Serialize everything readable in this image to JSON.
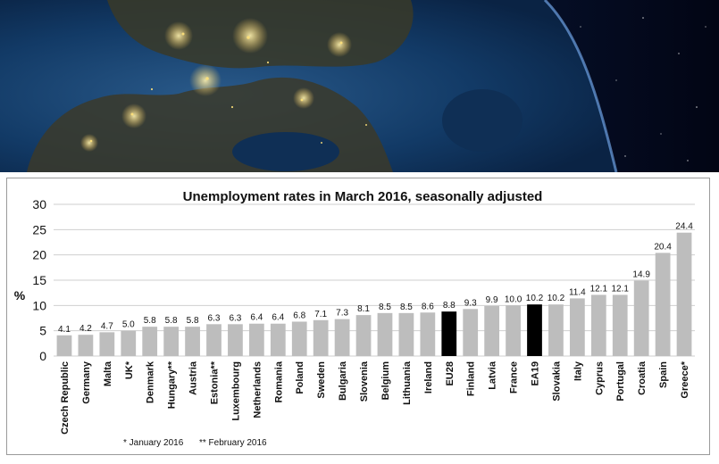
{
  "chart_data": {
    "type": "bar",
    "title": "Unemployment rates in March 2016, seasonally adjusted",
    "xlabel": "",
    "ylabel": "%",
    "ylim": [
      0,
      30
    ],
    "yticks": [
      "0",
      "5",
      "10",
      "15",
      "20",
      "25",
      "30"
    ],
    "grid": true,
    "categories": [
      "Czech Republic",
      "Germany",
      "Malta",
      "UK*",
      "Denmark",
      "Hungary**",
      "Austria",
      "Estonia**",
      "Luxembourg",
      "Netherlands",
      "Romania",
      "Poland",
      "Sweden",
      "Bulgaria",
      "Slovenia",
      "Belgium",
      "Lithuania",
      "Ireland",
      "EU28",
      "Finland",
      "Latvia",
      "France",
      "EA19",
      "Slovakia",
      "Italy",
      "Cyprus",
      "Portugal",
      "Croatia",
      "Spain",
      "Greece*"
    ],
    "values": [
      4.1,
      4.2,
      4.7,
      5.0,
      5.8,
      5.8,
      5.8,
      6.3,
      6.3,
      6.4,
      6.4,
      6.8,
      7.1,
      7.3,
      8.1,
      8.5,
      8.5,
      8.6,
      8.8,
      9.3,
      9.9,
      10.0,
      10.2,
      10.2,
      11.4,
      12.1,
      12.1,
      14.9,
      20.4,
      24.4
    ],
    "value_labels": [
      "4.1",
      "4.2",
      "4.7",
      "5.0",
      "5.8",
      "5.8",
      "5.8",
      "6.3",
      "6.3",
      "6.4",
      "6.4",
      "6.8",
      "7.1",
      "7.3",
      "8.1",
      "8.5",
      "8.5",
      "8.6",
      "8.8",
      "9.3",
      "9.9",
      "10.0",
      "10.2",
      "10.2",
      "11.4",
      "12.1",
      "12.1",
      "14.9",
      "20.4",
      "24.4"
    ],
    "highlighted": [
      "EU28",
      "EA19"
    ],
    "colors": {
      "default_bar": "#bdbdbd",
      "highlight_bar": "#000000",
      "grid": "#cfcfcf"
    },
    "footnotes": [
      "* January 2016",
      "** February 2016"
    ]
  }
}
